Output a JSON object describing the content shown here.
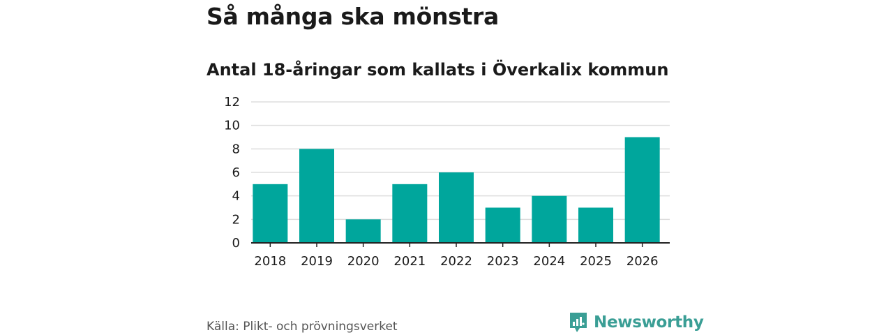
{
  "title": "Så många ska mönstra",
  "subtitle": "Antal 18-åringar som kallats i Överkalix kommun",
  "source": "Källa: Plikt- och prövningsverket",
  "brand": "Newsworthy",
  "colors": {
    "bar": "#00a69c",
    "grid": "#dddddd",
    "axis": "#222222",
    "brand": "#3a9e95"
  },
  "chart_data": {
    "type": "bar",
    "title": "Så många ska mönstra",
    "subtitle": "Antal 18-åringar som kallats i Överkalix kommun",
    "xlabel": "",
    "ylabel": "",
    "categories": [
      "2018",
      "2019",
      "2020",
      "2021",
      "2022",
      "2023",
      "2024",
      "2025",
      "2026"
    ],
    "values": [
      5,
      8,
      2,
      5,
      6,
      3,
      4,
      3,
      9
    ],
    "ylim": [
      0,
      12
    ],
    "yticks": [
      0,
      2,
      4,
      6,
      8,
      10,
      12
    ],
    "grid": true
  }
}
